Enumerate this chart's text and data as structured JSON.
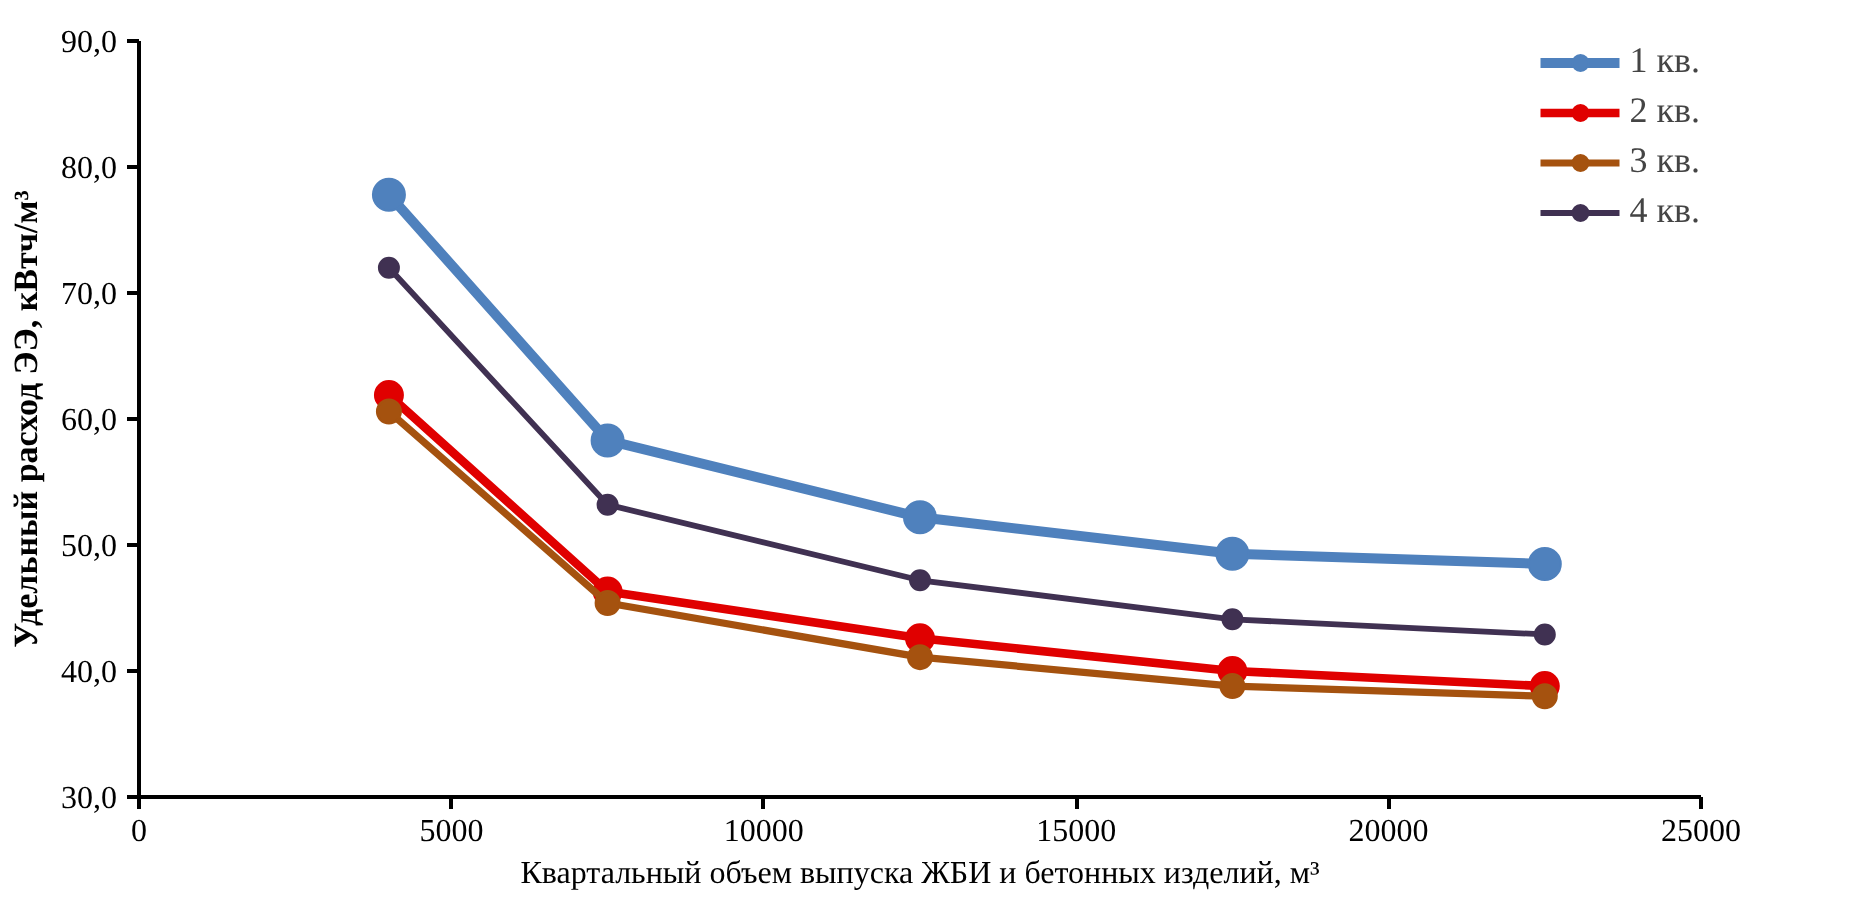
{
  "chart_data": {
    "type": "line",
    "ylabel": "Удельный расход ЭЭ, кВтч/м³",
    "xlabel": "Квартальный объем выпуска ЖБИ и бетонных изделий, м³",
    "x": [
      4000,
      7500,
      12500,
      17500,
      22500
    ],
    "series": [
      {
        "name": "1 кв.",
        "color": "#4f81bd",
        "values": [
          77.8,
          58.3,
          52.2,
          49.3,
          48.5
        ]
      },
      {
        "name": "2 кв.",
        "color": "#e00000",
        "values": [
          61.9,
          46.3,
          42.6,
          40.0,
          38.8
        ]
      },
      {
        "name": "3 кв.",
        "color": "#a5520f",
        "values": [
          60.6,
          45.4,
          41.1,
          38.8,
          38.0
        ]
      },
      {
        "name": "4 кв.",
        "color": "#403152",
        "values": [
          72.0,
          53.2,
          47.2,
          44.1,
          42.9
        ]
      }
    ],
    "xlim": [
      0,
      25000
    ],
    "xticks": [
      0,
      5000,
      10000,
      15000,
      20000,
      25000
    ],
    "ylim": [
      30,
      90
    ],
    "yticks": [
      {
        "value": 30,
        "label": "30,0"
      },
      {
        "value": 40,
        "label": "40,0"
      },
      {
        "value": 50,
        "label": "50,0"
      },
      {
        "value": 60,
        "label": "60,0"
      },
      {
        "value": 70,
        "label": "70,0"
      },
      {
        "value": 80,
        "label": "80,0"
      },
      {
        "value": 90,
        "label": "90,0"
      }
    ],
    "grid": false,
    "legend": "top right",
    "marker": "circle",
    "line_style": "solid"
  }
}
